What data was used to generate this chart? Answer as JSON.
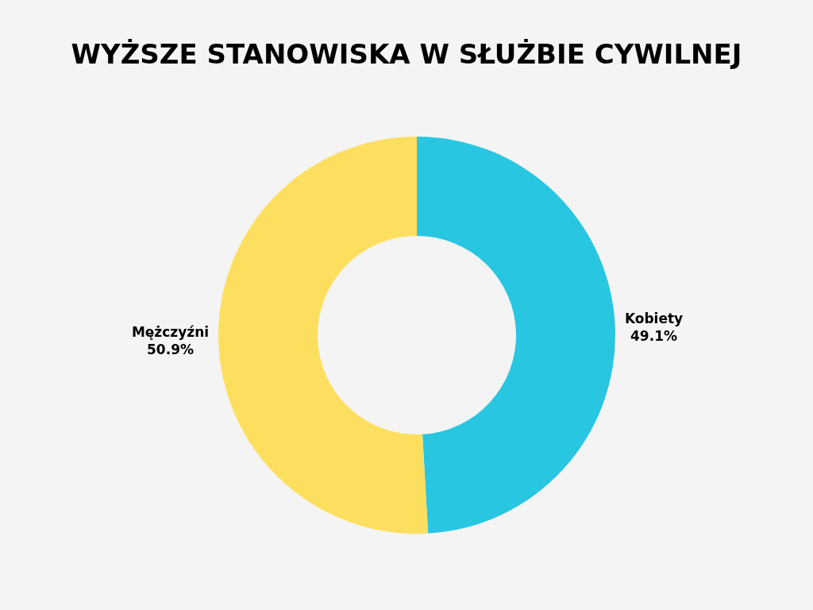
{
  "chart_data": {
    "type": "donut",
    "title": "WYŻSZE STANOWISKA W SŁUŻBIE CYWILNEJ",
    "categories": [
      "Kobiety",
      "Mężczyźni"
    ],
    "values": [
      49.1,
      50.9
    ],
    "value_labels": [
      "49.1%",
      "50.9%"
    ],
    "colors": [
      "#29c6e2",
      "#fddf5f"
    ],
    "legend": false
  }
}
